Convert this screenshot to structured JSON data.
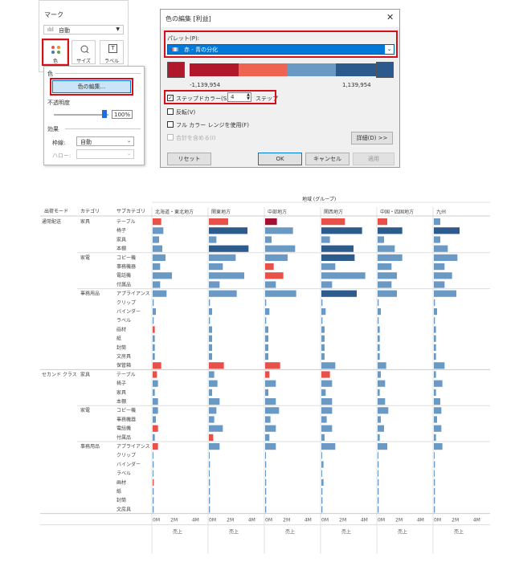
{
  "marks": {
    "title": "マーク",
    "mark_type": "自動",
    "color_label": "色",
    "size_label": "サイズ",
    "label_label": "ラベル",
    "popup": {
      "heading": "色",
      "edit_colors": "色の編集...",
      "opacity_label": "不透明度",
      "opacity_value": "100%",
      "effects_label": "効果",
      "border_label": "枠線:",
      "border_value": "自動",
      "halo_label": "ハロー:"
    }
  },
  "dialog": {
    "title": "色の編集 [利益]",
    "palette_label": "パレット(P):",
    "palette_value": "赤 - 青の分化",
    "min_value": "-1,139,954",
    "max_value": "1,139,954",
    "stepped_label": "ステップドカラー(S)",
    "steps_value": "4",
    "steps_unit": "ステップ",
    "reverse_label": "反転(V)",
    "full_range_label": "フル カラー レンジを使用(F)",
    "include_totals_label": "合計を含める(I)",
    "advanced_button": "詳細(D) >>",
    "reset_button": "リセット",
    "ok_button": "OK",
    "cancel_button": "キャンセル",
    "apply_button": "適用",
    "ramp_colors": [
      "#b2182b",
      "#ef6351",
      "#6a9ac4",
      "#2c5a8c"
    ]
  },
  "chart_data": {
    "type": "bar",
    "region_group_title": "地域 (グループ)",
    "header_shipmode": "出荷モード",
    "header_category": "カテゴリ",
    "header_subcategory": "サブカテゴリ",
    "regions": [
      "北海道・東北地方",
      "関東地方",
      "中部地方",
      "関西地方",
      "中国・四国地方",
      "九州"
    ],
    "axis_ticks": [
      "0M",
      "2M",
      "4M"
    ],
    "axis_title": "売上",
    "xlim": [
      0,
      4.5
    ],
    "color_map": {
      "red": "#e8514a",
      "lightred": "#f08a80",
      "darkred": "#a50f34",
      "blue": "#6a9ac4",
      "darkblue": "#2d5b8c"
    },
    "shipmodes": [
      {
        "name": "通常配送",
        "categories": [
          {
            "name": "家具",
            "rows": [
              {
                "sub": "テーブル",
                "values": [
                  0.8,
                  1.8,
                  1.1,
                  2.2,
                  0.9,
                  0.6
                ],
                "colors": [
                  "red",
                  "red",
                  "darkred",
                  "red",
                  "red",
                  "blue"
                ]
              },
              {
                "sub": "椅子",
                "values": [
                  1.0,
                  3.6,
                  2.6,
                  3.8,
                  2.3,
                  2.4
                ],
                "colors": [
                  "blue",
                  "darkblue",
                  "blue",
                  "darkblue",
                  "darkblue",
                  "darkblue"
                ]
              },
              {
                "sub": "家具",
                "values": [
                  0.6,
                  0.7,
                  0.6,
                  0.8,
                  0.6,
                  0.6
                ],
                "colors": [
                  "blue",
                  "blue",
                  "blue",
                  "blue",
                  "blue",
                  "blue"
                ]
              },
              {
                "sub": "本棚",
                "values": [
                  0.9,
                  3.7,
                  2.8,
                  3.0,
                  1.6,
                  1.3
                ],
                "colors": [
                  "blue",
                  "darkblue",
                  "blue",
                  "darkblue",
                  "blue",
                  "blue"
                ]
              }
            ]
          },
          {
            "name": "家電",
            "rows": [
              {
                "sub": "コピー機",
                "values": [
                  1.2,
                  2.5,
                  2.1,
                  3.1,
                  2.3,
                  2.2
                ],
                "colors": [
                  "blue",
                  "blue",
                  "blue",
                  "darkblue",
                  "blue",
                  "blue"
                ]
              },
              {
                "sub": "事務機器",
                "values": [
                  0.7,
                  1.3,
                  0.8,
                  1.3,
                  1.3,
                  1.0
                ],
                "colors": [
                  "blue",
                  "blue",
                  "red",
                  "blue",
                  "blue",
                  "blue"
                ]
              },
              {
                "sub": "電話機",
                "values": [
                  1.8,
                  3.3,
                  1.7,
                  4.1,
                  1.8,
                  1.7
                ],
                "colors": [
                  "blue",
                  "blue",
                  "red",
                  "blue",
                  "blue",
                  "blue"
                ]
              },
              {
                "sub": "付属品",
                "values": [
                  0.7,
                  1.0,
                  1.0,
                  1.0,
                  1.3,
                  1.0
                ],
                "colors": [
                  "blue",
                  "blue",
                  "blue",
                  "blue",
                  "blue",
                  "blue"
                ]
              }
            ]
          },
          {
            "name": "事務用品",
            "rows": [
              {
                "sub": "アプライアンス",
                "values": [
                  1.3,
                  2.6,
                  2.9,
                  3.3,
                  1.8,
                  2.1
                ],
                "colors": [
                  "blue",
                  "blue",
                  "blue",
                  "darkblue",
                  "blue",
                  "blue"
                ]
              },
              {
                "sub": "クリップ",
                "values": [
                  0.1,
                  0.1,
                  0.1,
                  0.1,
                  0.1,
                  0.1
                ],
                "colors": [
                  "blue",
                  "blue",
                  "blue",
                  "blue",
                  "blue",
                  "blue"
                ]
              },
              {
                "sub": "バインダー",
                "values": [
                  0.3,
                  0.3,
                  0.4,
                  0.4,
                  0.3,
                  0.3
                ],
                "colors": [
                  "blue",
                  "blue",
                  "blue",
                  "blue",
                  "blue",
                  "blue"
                ]
              },
              {
                "sub": "ラベル",
                "values": [
                  0.1,
                  0.1,
                  0.1,
                  0.1,
                  0.1,
                  0.1
                ],
                "colors": [
                  "blue",
                  "blue",
                  "blue",
                  "blue",
                  "blue",
                  "blue"
                ]
              },
              {
                "sub": "画材",
                "values": [
                  0.2,
                  0.3,
                  0.3,
                  0.3,
                  0.2,
                  0.2
                ],
                "colors": [
                  "red",
                  "blue",
                  "blue",
                  "blue",
                  "blue",
                  "blue"
                ]
              },
              {
                "sub": "紙",
                "values": [
                  0.2,
                  0.3,
                  0.3,
                  0.3,
                  0.2,
                  0.2
                ],
                "colors": [
                  "blue",
                  "blue",
                  "blue",
                  "blue",
                  "blue",
                  "blue"
                ]
              },
              {
                "sub": "封筒",
                "values": [
                  0.2,
                  0.3,
                  0.3,
                  0.3,
                  0.2,
                  0.2
                ],
                "colors": [
                  "blue",
                  "blue",
                  "blue",
                  "blue",
                  "blue",
                  "blue"
                ]
              },
              {
                "sub": "文房具",
                "values": [
                  0.2,
                  0.3,
                  0.3,
                  0.3,
                  0.2,
                  0.2
                ],
                "colors": [
                  "blue",
                  "blue",
                  "blue",
                  "blue",
                  "blue",
                  "blue"
                ]
              },
              {
                "sub": "保管箱",
                "values": [
                  0.8,
                  1.4,
                  1.4,
                  1.3,
                  0.8,
                  1.0
                ],
                "colors": [
                  "red",
                  "red",
                  "red",
                  "blue",
                  "blue",
                  "blue"
                ]
              }
            ]
          }
        ]
      },
      {
        "name": "セカンド クラス",
        "categories": [
          {
            "name": "家具",
            "rows": [
              {
                "sub": "テーブル",
                "values": [
                  0.4,
                  0.5,
                  0.4,
                  0.8,
                  0.3,
                  0.2
                ],
                "colors": [
                  "red",
                  "blue",
                  "red",
                  "red",
                  "blue",
                  "blue"
                ]
              },
              {
                "sub": "椅子",
                "values": [
                  0.5,
                  0.8,
                  1.0,
                  1.0,
                  0.7,
                  0.8
                ],
                "colors": [
                  "blue",
                  "blue",
                  "blue",
                  "blue",
                  "blue",
                  "blue"
                ]
              },
              {
                "sub": "家具",
                "values": [
                  0.2,
                  0.3,
                  0.3,
                  0.4,
                  0.2,
                  0.2
                ],
                "colors": [
                  "blue",
                  "blue",
                  "blue",
                  "blue",
                  "blue",
                  "blue"
                ]
              },
              {
                "sub": "本棚",
                "values": [
                  0.5,
                  1.0,
                  1.0,
                  1.0,
                  0.7,
                  0.6
                ],
                "colors": [
                  "blue",
                  "blue",
                  "blue",
                  "blue",
                  "blue",
                  "blue"
                ]
              }
            ]
          },
          {
            "name": "家電",
            "rows": [
              {
                "sub": "コピー機",
                "values": [
                  0.5,
                  0.7,
                  1.3,
                  1.0,
                  1.0,
                  0.7
                ],
                "colors": [
                  "blue",
                  "blue",
                  "blue",
                  "blue",
                  "blue",
                  "blue"
                ]
              },
              {
                "sub": "事務機器",
                "values": [
                  0.3,
                  0.5,
                  0.5,
                  0.5,
                  0.3,
                  0.3
                ],
                "colors": [
                  "blue",
                  "blue",
                  "blue",
                  "blue",
                  "blue",
                  "blue"
                ]
              },
              {
                "sub": "電話機",
                "values": [
                  0.5,
                  1.3,
                  1.0,
                  1.0,
                  0.6,
                  0.7
                ],
                "colors": [
                  "red",
                  "blue",
                  "blue",
                  "blue",
                  "blue",
                  "blue"
                ]
              },
              {
                "sub": "付属品",
                "values": [
                  0.2,
                  0.4,
                  0.4,
                  0.3,
                  0.2,
                  0.2
                ],
                "colors": [
                  "blue",
                  "red",
                  "blue",
                  "blue",
                  "blue",
                  "blue"
                ]
              }
            ]
          },
          {
            "name": "事務用品",
            "rows": [
              {
                "sub": "アプライアンス",
                "values": [
                  0.5,
                  1.0,
                  1.0,
                  1.3,
                  0.9,
                  0.8
                ],
                "colors": [
                  "red",
                  "blue",
                  "blue",
                  "blue",
                  "blue",
                  "blue"
                ]
              },
              {
                "sub": "クリップ",
                "values": [
                  0.05,
                  0.05,
                  0.05,
                  0.05,
                  0.05,
                  0.05
                ],
                "colors": [
                  "blue",
                  "blue",
                  "blue",
                  "blue",
                  "blue",
                  "blue"
                ]
              },
              {
                "sub": "バインダー",
                "values": [
                  0.1,
                  0.1,
                  0.1,
                  0.2,
                  0.1,
                  0.1
                ],
                "colors": [
                  "blue",
                  "blue",
                  "blue",
                  "blue",
                  "blue",
                  "blue"
                ]
              },
              {
                "sub": "ラベル",
                "values": [
                  0.05,
                  0.05,
                  0.05,
                  0.05,
                  0.05,
                  0.05
                ],
                "colors": [
                  "blue",
                  "blue",
                  "blue",
                  "blue",
                  "blue",
                  "blue"
                ]
              },
              {
                "sub": "画材",
                "values": [
                  0.1,
                  0.1,
                  0.1,
                  0.2,
                  0.1,
                  0.1
                ],
                "colors": [
                  "red",
                  "blue",
                  "blue",
                  "blue",
                  "blue",
                  "blue"
                ]
              },
              {
                "sub": "紙",
                "values": [
                  0.1,
                  0.1,
                  0.1,
                  0.1,
                  0.1,
                  0.1
                ],
                "colors": [
                  "blue",
                  "blue",
                  "blue",
                  "blue",
                  "blue",
                  "blue"
                ]
              },
              {
                "sub": "封筒",
                "values": [
                  0.1,
                  0.1,
                  0.1,
                  0.1,
                  0.1,
                  0.1
                ],
                "colors": [
                  "blue",
                  "blue",
                  "blue",
                  "blue",
                  "blue",
                  "blue"
                ]
              },
              {
                "sub": "文房具",
                "values": [
                  0.1,
                  0.1,
                  0.1,
                  0.1,
                  0.1,
                  0.1
                ],
                "colors": [
                  "blue",
                  "blue",
                  "blue",
                  "blue",
                  "blue",
                  "blue"
                ]
              }
            ]
          }
        ]
      }
    ]
  }
}
